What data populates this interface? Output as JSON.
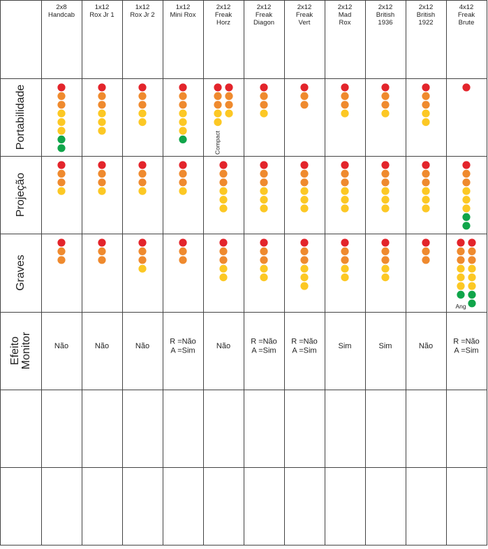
{
  "palette": {
    "red": "#e3242b",
    "orange": "#ef8a2e",
    "yellow": "#fcc824",
    "green": "#10a54a"
  },
  "columns": [
    [
      "2x8",
      "Handcab"
    ],
    [
      "1x12",
      "Rox Jr 1"
    ],
    [
      "1x12",
      "Rox Jr 2"
    ],
    [
      "1x12",
      "Mini Rox"
    ],
    [
      "2x12",
      "Freak",
      "Horz"
    ],
    [
      "2x12",
      "Freak",
      "Diagon"
    ],
    [
      "2x12",
      "Freak",
      "Vert"
    ],
    [
      "2x12",
      "Mad",
      "Rox"
    ],
    [
      "2x12",
      "British",
      "1936"
    ],
    [
      "2x12",
      "British",
      "1922"
    ],
    [
      "4x12",
      "Freak",
      "Brute"
    ]
  ],
  "rows": [
    {
      "label": [
        "Portabilidade"
      ],
      "cells": [
        {
          "stacks": [
            [
              "red",
              "orange",
              "orange",
              "yellow",
              "yellow",
              "yellow",
              "green",
              "green"
            ]
          ]
        },
        {
          "stacks": [
            [
              "red",
              "orange",
              "orange",
              "yellow",
              "yellow",
              "yellow"
            ]
          ]
        },
        {
          "stacks": [
            [
              "red",
              "orange",
              "orange",
              "yellow",
              "yellow"
            ]
          ]
        },
        {
          "stacks": [
            [
              "red",
              "orange",
              "orange",
              "yellow",
              "yellow",
              "yellow",
              "green"
            ]
          ]
        },
        {
          "stacks": [
            [
              "red",
              "orange",
              "orange",
              "yellow",
              "yellow"
            ],
            [
              "red",
              "orange",
              "orange",
              "yellow"
            ]
          ],
          "note": "Compact"
        },
        {
          "stacks": [
            [
              "red",
              "orange",
              "orange",
              "yellow"
            ]
          ]
        },
        {
          "stacks": [
            [
              "red",
              "orange",
              "orange"
            ]
          ]
        },
        {
          "stacks": [
            [
              "red",
              "orange",
              "orange",
              "yellow"
            ]
          ]
        },
        {
          "stacks": [
            [
              "red",
              "orange",
              "orange",
              "yellow"
            ]
          ]
        },
        {
          "stacks": [
            [
              "red",
              "orange",
              "orange",
              "yellow",
              "yellow"
            ]
          ]
        },
        {
          "stacks": [
            [
              "red"
            ]
          ]
        }
      ]
    },
    {
      "label": [
        "Projeção"
      ],
      "cells": [
        {
          "stacks": [
            [
              "red",
              "orange",
              "orange",
              "yellow"
            ]
          ]
        },
        {
          "stacks": [
            [
              "red",
              "orange",
              "orange",
              "yellow"
            ]
          ]
        },
        {
          "stacks": [
            [
              "red",
              "orange",
              "orange",
              "yellow"
            ]
          ]
        },
        {
          "stacks": [
            [
              "red",
              "orange",
              "orange",
              "yellow"
            ]
          ]
        },
        {
          "stacks": [
            [
              "red",
              "orange",
              "orange",
              "yellow",
              "yellow",
              "yellow"
            ]
          ]
        },
        {
          "stacks": [
            [
              "red",
              "orange",
              "orange",
              "yellow",
              "yellow",
              "yellow"
            ]
          ]
        },
        {
          "stacks": [
            [
              "red",
              "orange",
              "orange",
              "yellow",
              "yellow",
              "yellow"
            ]
          ]
        },
        {
          "stacks": [
            [
              "red",
              "orange",
              "orange",
              "yellow",
              "yellow",
              "yellow"
            ]
          ]
        },
        {
          "stacks": [
            [
              "red",
              "orange",
              "orange",
              "yellow",
              "yellow",
              "yellow"
            ]
          ]
        },
        {
          "stacks": [
            [
              "red",
              "orange",
              "orange",
              "yellow",
              "yellow",
              "yellow"
            ]
          ]
        },
        {
          "stacks": [
            [
              "red",
              "orange",
              "orange",
              "yellow",
              "yellow",
              "yellow",
              "green",
              "green"
            ]
          ]
        }
      ]
    },
    {
      "label": [
        "Graves"
      ],
      "cells": [
        {
          "stacks": [
            [
              "red",
              "orange",
              "orange"
            ]
          ]
        },
        {
          "stacks": [
            [
              "red",
              "orange",
              "orange"
            ]
          ]
        },
        {
          "stacks": [
            [
              "red",
              "orange",
              "orange",
              "yellow"
            ]
          ]
        },
        {
          "stacks": [
            [
              "red",
              "orange",
              "orange"
            ]
          ]
        },
        {
          "stacks": [
            [
              "red",
              "orange",
              "orange",
              "yellow",
              "yellow"
            ]
          ]
        },
        {
          "stacks": [
            [
              "red",
              "orange",
              "orange",
              "yellow",
              "yellow"
            ]
          ]
        },
        {
          "stacks": [
            [
              "red",
              "orange",
              "orange",
              "yellow",
              "yellow",
              "yellow"
            ]
          ]
        },
        {
          "stacks": [
            [
              "red",
              "orange",
              "orange",
              "yellow",
              "yellow"
            ]
          ]
        },
        {
          "stacks": [
            [
              "red",
              "orange",
              "orange",
              "yellow",
              "yellow"
            ]
          ]
        },
        {
          "stacks": [
            [
              "red",
              "orange",
              "orange"
            ]
          ]
        },
        {
          "stacks": [
            [
              "red",
              "orange",
              "orange",
              "yellow",
              "yellow",
              "yellow",
              "green"
            ],
            [
              "red",
              "orange",
              "orange",
              "yellow",
              "yellow",
              "yellow",
              "green",
              "green"
            ]
          ],
          "note": "Ang"
        }
      ]
    },
    {
      "label": [
        "Efeito",
        "Monitor"
      ],
      "cells": [
        {
          "text": [
            "Não"
          ]
        },
        {
          "text": [
            "Não"
          ]
        },
        {
          "text": [
            "Não"
          ]
        },
        {
          "text": [
            "R =Não",
            "A =Sim"
          ]
        },
        {
          "text": [
            "Não"
          ]
        },
        {
          "text": [
            "R =Não",
            "A =Sim"
          ]
        },
        {
          "text": [
            "R =Não",
            "A =Sim"
          ]
        },
        {
          "text": [
            "Sim"
          ]
        },
        {
          "text": [
            "Sim"
          ]
        },
        {
          "text": [
            "Não"
          ]
        },
        {
          "text": [
            "R =Não",
            "A =Sim"
          ]
        }
      ]
    }
  ]
}
